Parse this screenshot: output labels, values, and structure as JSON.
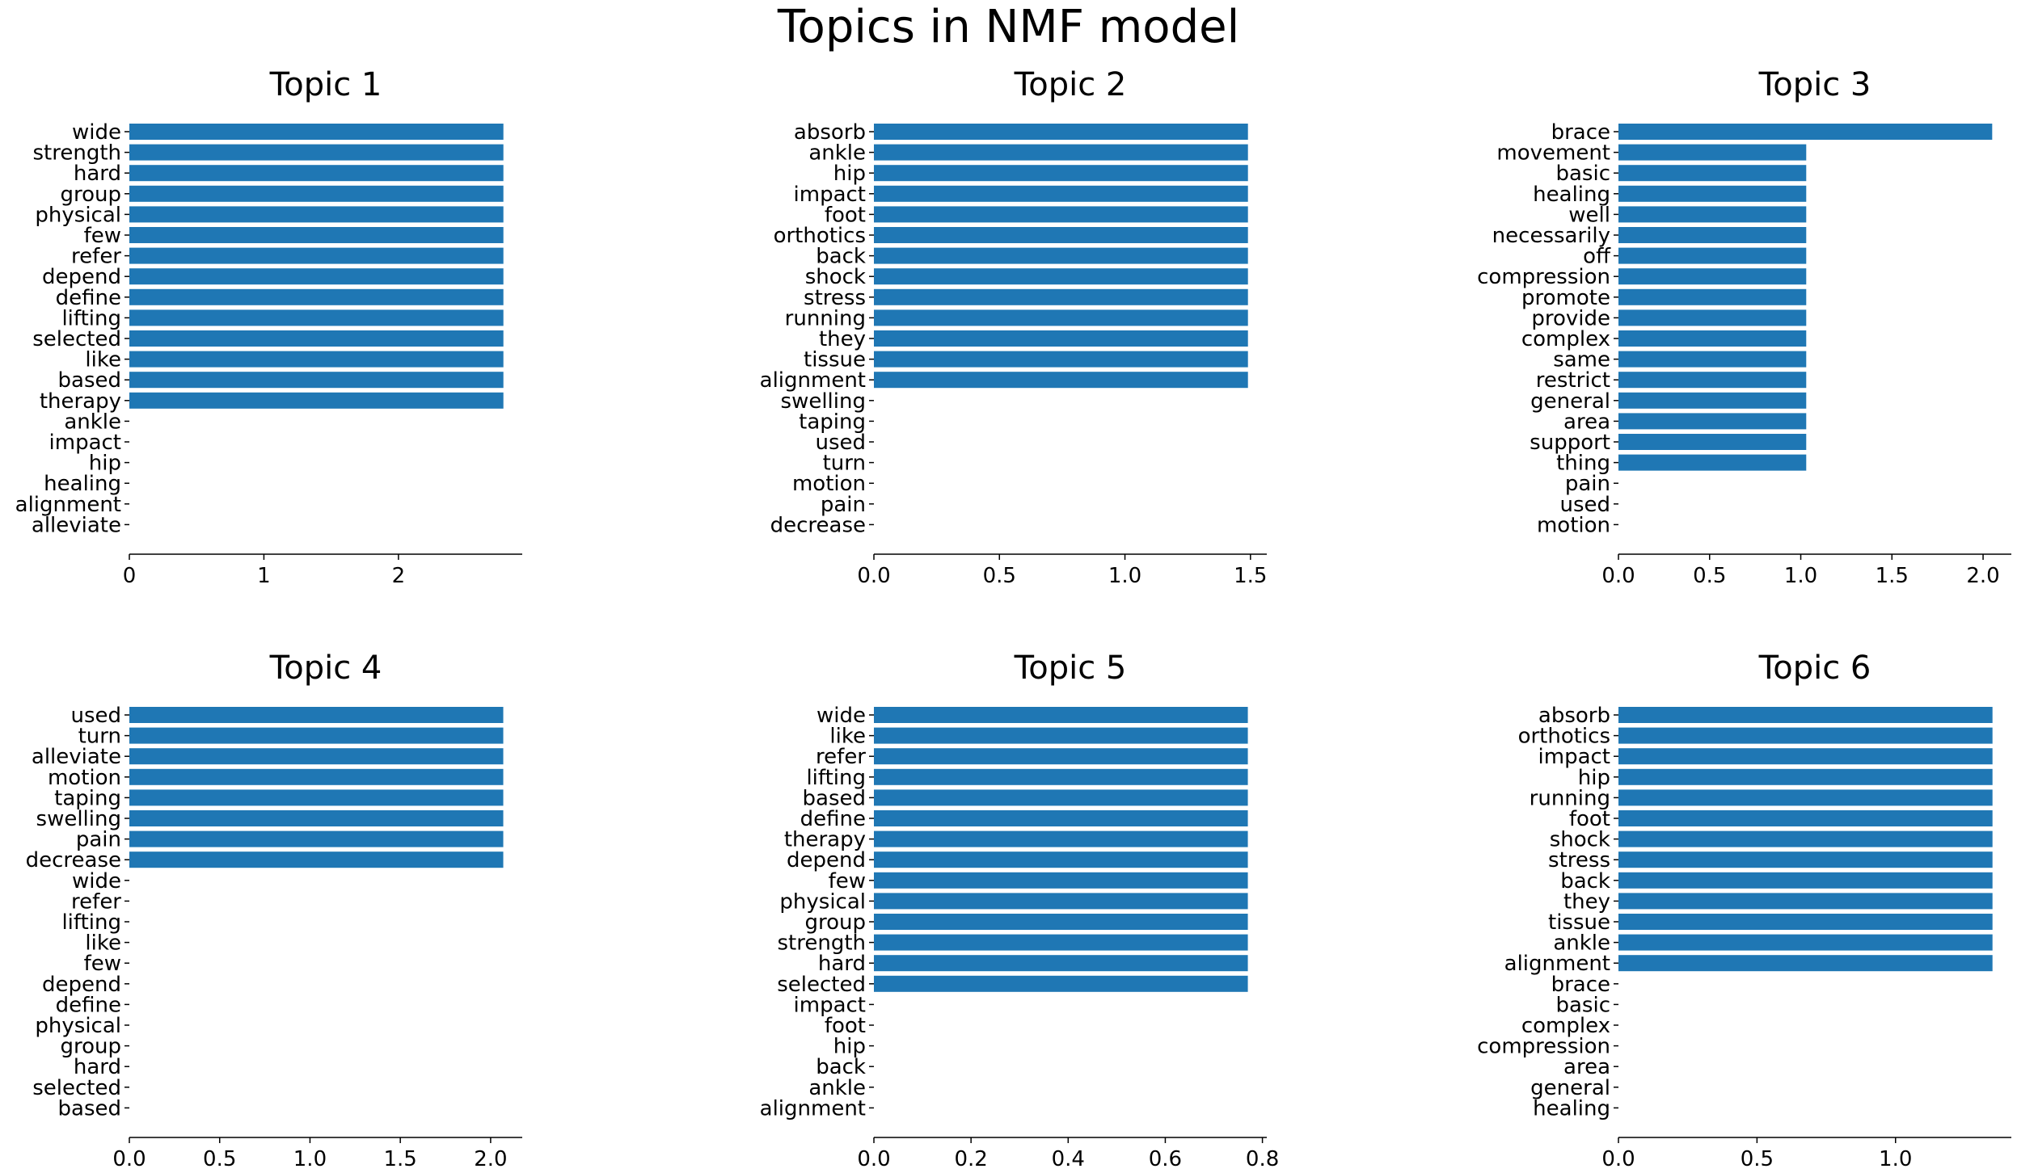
{
  "figure_title": "Topics in NMF model",
  "colors": {
    "bar": "#1f77b4",
    "axis": "#000000"
  },
  "chart_data": [
    {
      "type": "bar",
      "orientation": "horizontal",
      "title": "Topic 1",
      "categories": [
        "wide",
        "strength",
        "hard",
        "group",
        "physical",
        "few",
        "refer",
        "depend",
        "define",
        "lifting",
        "selected",
        "like",
        "based",
        "therapy",
        "ankle",
        "impact",
        "hip",
        "healing",
        "alignment",
        "alleviate"
      ],
      "values": [
        2.78,
        2.78,
        2.78,
        2.78,
        2.78,
        2.78,
        2.78,
        2.78,
        2.78,
        2.78,
        2.78,
        2.78,
        2.78,
        2.78,
        0,
        0,
        0,
        0,
        0,
        0
      ],
      "xticks": [
        "0",
        "1",
        "2"
      ],
      "xtick_values": [
        0,
        1,
        2
      ],
      "xlim": [
        0,
        2.92
      ]
    },
    {
      "type": "bar",
      "orientation": "horizontal",
      "title": "Topic 2",
      "categories": [
        "absorb",
        "ankle",
        "hip",
        "impact",
        "foot",
        "orthotics",
        "back",
        "shock",
        "stress",
        "running",
        "they",
        "tissue",
        "alignment",
        "swelling",
        "taping",
        "used",
        "turn",
        "motion",
        "pain",
        "decrease"
      ],
      "values": [
        1.49,
        1.49,
        1.49,
        1.49,
        1.49,
        1.49,
        1.49,
        1.49,
        1.49,
        1.49,
        1.49,
        1.49,
        1.49,
        0,
        0,
        0,
        0,
        0,
        0,
        0
      ],
      "xticks": [
        "0.0",
        "0.5",
        "1.0",
        "1.5"
      ],
      "xtick_values": [
        0,
        0.5,
        1.0,
        1.5
      ],
      "xlim": [
        0,
        1.565
      ]
    },
    {
      "type": "bar",
      "orientation": "horizontal",
      "title": "Topic 3",
      "categories": [
        "brace",
        "movement",
        "basic",
        "healing",
        "well",
        "necessarily",
        "off",
        "compression",
        "promote",
        "provide",
        "complex",
        "same",
        "restrict",
        "general",
        "area",
        "support",
        "thing",
        "pain",
        "used",
        "motion"
      ],
      "values": [
        2.05,
        1.03,
        1.03,
        1.03,
        1.03,
        1.03,
        1.03,
        1.03,
        1.03,
        1.03,
        1.03,
        1.03,
        1.03,
        1.03,
        1.03,
        1.03,
        1.03,
        0,
        0,
        0
      ],
      "xticks": [
        "0.0",
        "0.5",
        "1.0",
        "1.5",
        "2.0"
      ],
      "xtick_values": [
        0,
        0.5,
        1.0,
        1.5,
        2.0
      ],
      "xlim": [
        0,
        2.155
      ]
    },
    {
      "type": "bar",
      "orientation": "horizontal",
      "title": "Topic 4",
      "categories": [
        "used",
        "turn",
        "alleviate",
        "motion",
        "taping",
        "swelling",
        "pain",
        "decrease",
        "wide",
        "refer",
        "lifting",
        "like",
        "few",
        "depend",
        "define",
        "physical",
        "group",
        "hard",
        "selected",
        "based"
      ],
      "values": [
        2.07,
        2.07,
        2.07,
        2.07,
        2.07,
        2.07,
        2.07,
        2.07,
        0,
        0,
        0,
        0,
        0,
        0,
        0,
        0,
        0,
        0,
        0,
        0
      ],
      "xticks": [
        "0.0",
        "0.5",
        "1.0",
        "1.5",
        "2.0"
      ],
      "xtick_values": [
        0,
        0.5,
        1.0,
        1.5,
        2.0
      ],
      "xlim": [
        0,
        2.175
      ]
    },
    {
      "type": "bar",
      "orientation": "horizontal",
      "title": "Topic 5",
      "categories": [
        "wide",
        "like",
        "refer",
        "lifting",
        "based",
        "define",
        "therapy",
        "depend",
        "few",
        "physical",
        "group",
        "strength",
        "hard",
        "selected",
        "impact",
        "foot",
        "hip",
        "back",
        "ankle",
        "alignment"
      ],
      "values": [
        0.77,
        0.77,
        0.77,
        0.77,
        0.77,
        0.77,
        0.77,
        0.77,
        0.77,
        0.77,
        0.77,
        0.77,
        0.77,
        0.77,
        0,
        0,
        0,
        0,
        0,
        0
      ],
      "xticks": [
        "0.0",
        "0.2",
        "0.4",
        "0.6",
        "0.8"
      ],
      "xtick_values": [
        0,
        0.2,
        0.4,
        0.6,
        0.8
      ],
      "xlim": [
        0,
        0.809
      ]
    },
    {
      "type": "bar",
      "orientation": "horizontal",
      "title": "Topic 6",
      "categories": [
        "absorb",
        "orthotics",
        "impact",
        "hip",
        "running",
        "foot",
        "shock",
        "stress",
        "back",
        "they",
        "tissue",
        "ankle",
        "alignment",
        "brace",
        "basic",
        "complex",
        "compression",
        "area",
        "general",
        "healing"
      ],
      "values": [
        1.35,
        1.35,
        1.35,
        1.35,
        1.35,
        1.35,
        1.35,
        1.35,
        1.35,
        1.35,
        1.35,
        1.35,
        1.35,
        0,
        0,
        0,
        0,
        0,
        0,
        0
      ],
      "xticks": [
        "0.0",
        "0.5",
        "1.0"
      ],
      "xtick_values": [
        0,
        0.5,
        1.0
      ],
      "xlim": [
        0,
        1.418
      ]
    }
  ]
}
